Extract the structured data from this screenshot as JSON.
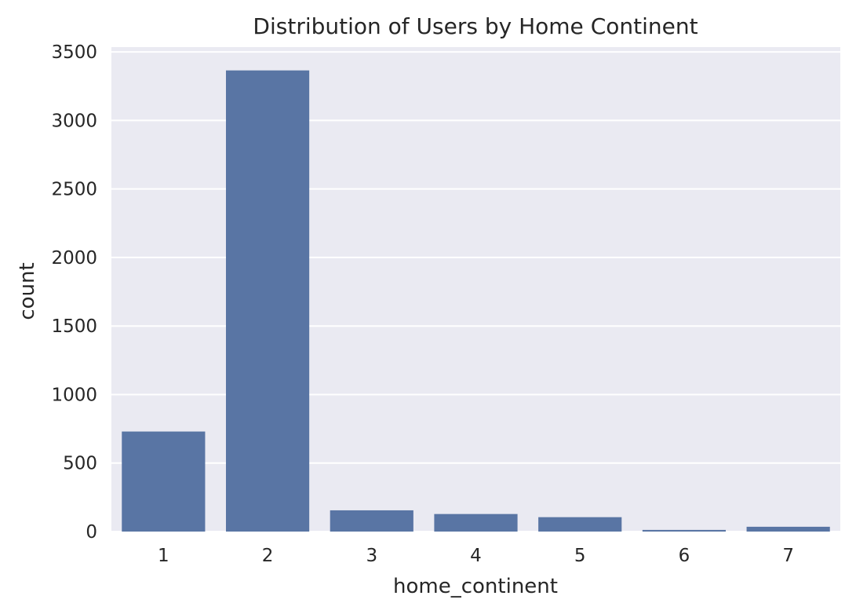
{
  "chart_data": {
    "type": "bar",
    "title": "Distribution of Users by Home Continent",
    "xlabel": "home_continent",
    "ylabel": "count",
    "categories": [
      "1",
      "2",
      "3",
      "4",
      "5",
      "6",
      "7"
    ],
    "values": [
      730,
      3365,
      155,
      128,
      105,
      12,
      35
    ],
    "ylim": [
      0,
      3535
    ],
    "yticks": [
      0,
      500,
      1000,
      1500,
      2000,
      2500,
      3000,
      3500
    ],
    "grid": true,
    "colors": {
      "bar": "#5975a4",
      "background": "#eaeaf2",
      "grid": "#ffffff"
    }
  }
}
